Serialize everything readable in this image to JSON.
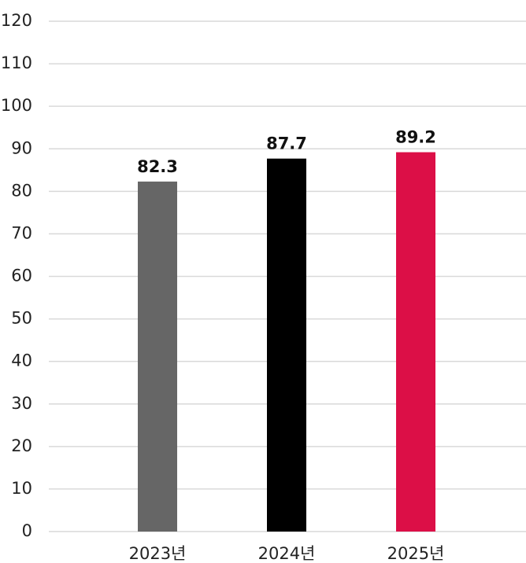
{
  "chart_data": {
    "type": "bar",
    "categories": [
      "2023년",
      "2024년",
      "2025년"
    ],
    "values": [
      82.3,
      87.7,
      89.2
    ],
    "colors": [
      "#666666",
      "#000000",
      "#dc0f47"
    ],
    "ylim": [
      0,
      120
    ],
    "yticks": [
      0,
      10,
      20,
      30,
      40,
      50,
      60,
      70,
      80,
      90,
      100,
      110,
      120
    ],
    "grid": true
  }
}
